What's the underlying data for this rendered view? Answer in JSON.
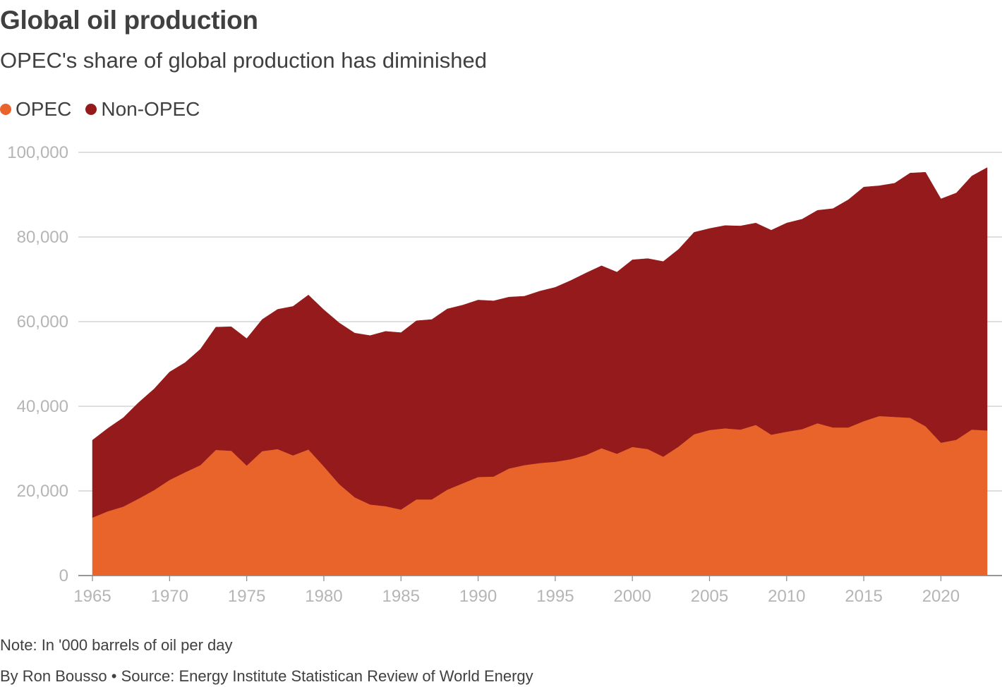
{
  "header": {
    "title": "Global oil production",
    "subtitle": "OPEC's share of global production has diminished"
  },
  "legend": [
    {
      "label": "OPEC",
      "color": "#e8642a"
    },
    {
      "label": "Non-OPEC",
      "color": "#941a1b"
    }
  ],
  "footer": {
    "note": "Note: In '000 barrels of oil per day",
    "credit": "By Ron Bousso • Source: Energy Institute Statistican Review of World Energy"
  },
  "chart_data": {
    "type": "area",
    "stacked": true,
    "title": "Global oil production",
    "subtitle": "OPEC's share of global production has diminished",
    "xlabel": "",
    "ylabel": "",
    "unit_note": "In '000 barrels of oil per day",
    "ylim": [
      0,
      100000
    ],
    "y_ticks": [
      0,
      20000,
      40000,
      60000,
      80000,
      100000
    ],
    "y_tick_labels": [
      "0",
      "20,000",
      "40,000",
      "60,000",
      "80,000",
      "100,000"
    ],
    "x_ticks": [
      1965,
      1970,
      1975,
      1980,
      1985,
      1990,
      1995,
      2000,
      2005,
      2010,
      2015,
      2020
    ],
    "x_tick_labels": [
      "1965",
      "1970",
      "1975",
      "1980",
      "1985",
      "1990",
      "1995",
      "2000",
      "2005",
      "2010",
      "2015",
      "2020"
    ],
    "xlim": [
      1965,
      2023
    ],
    "grid": true,
    "legend_position": "top-left",
    "x": [
      1965,
      1966,
      1967,
      1968,
      1969,
      1970,
      1971,
      1972,
      1973,
      1974,
      1975,
      1976,
      1977,
      1978,
      1979,
      1980,
      1981,
      1982,
      1983,
      1984,
      1985,
      1986,
      1987,
      1988,
      1989,
      1990,
      1991,
      1992,
      1993,
      1994,
      1995,
      1996,
      1997,
      1998,
      1999,
      2000,
      2001,
      2002,
      2003,
      2004,
      2005,
      2006,
      2007,
      2008,
      2009,
      2010,
      2011,
      2012,
      2013,
      2014,
      2015,
      2016,
      2017,
      2018,
      2019,
      2020,
      2021,
      2022,
      2023
    ],
    "series": [
      {
        "name": "OPEC",
        "color": "#e8642a",
        "values": [
          13700,
          15200,
          16300,
          18200,
          20200,
          22600,
          24400,
          26100,
          29700,
          29500,
          26000,
          29400,
          29900,
          28400,
          29800,
          25800,
          21600,
          18500,
          16800,
          16400,
          15600,
          18000,
          18000,
          20300,
          21800,
          23300,
          23400,
          25300,
          26100,
          26600,
          26900,
          27500,
          28500,
          30100,
          28800,
          30400,
          29900,
          28100,
          30500,
          33400,
          34400,
          34800,
          34500,
          35600,
          33300,
          34000,
          34600,
          36000,
          35000,
          35000,
          36500,
          37700,
          37500,
          37300,
          35300,
          31400,
          32100,
          34500,
          34300
        ]
      },
      {
        "name": "Non-OPEC",
        "color": "#941a1b",
        "values": [
          18300,
          19600,
          21000,
          22700,
          23900,
          25500,
          25900,
          27400,
          29000,
          29300,
          30000,
          31100,
          33000,
          35200,
          36500,
          37000,
          38100,
          38800,
          39900,
          41300,
          41800,
          42200,
          42500,
          42700,
          42100,
          41800,
          41500,
          40500,
          39900,
          40600,
          41200,
          42200,
          43000,
          43100,
          42900,
          44200,
          45000,
          46100,
          46600,
          47700,
          47600,
          47900,
          48100,
          47700,
          48300,
          49300,
          49600,
          50300,
          51700,
          53800,
          55300,
          54400,
          55200,
          57800,
          60000,
          57600,
          58300,
          59900,
          62100
        ]
      }
    ]
  }
}
